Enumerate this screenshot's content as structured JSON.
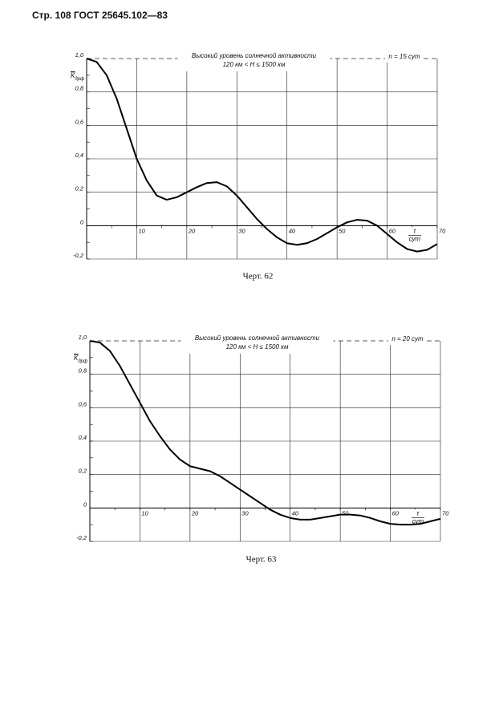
{
  "header": "Стр. 108 ГОСТ 25645.102—83",
  "chart_data": [
    {
      "type": "line",
      "title": "Высокий уровень солнечной активности",
      "subtitle": "120 км < H ≤ 1500 км",
      "annotation": "n = 15 сут",
      "y_label": {
        "symbol": "K",
        "subscript": "дрф"
      },
      "x_label": {
        "numerator": "τ",
        "denominator": "сут"
      },
      "caption": "Черт. 62",
      "color": "#000000",
      "grid": true,
      "x": [
        0,
        2,
        4,
        6,
        8,
        10,
        12,
        14,
        16,
        18,
        20,
        22,
        24,
        26,
        28,
        30,
        32,
        34,
        36,
        38,
        40,
        42,
        44,
        46,
        48,
        50,
        52,
        54,
        56,
        58,
        60,
        62,
        64,
        66,
        68,
        70
      ],
      "values": [
        1.0,
        0.98,
        0.9,
        0.76,
        0.58,
        0.4,
        0.27,
        0.18,
        0.155,
        0.17,
        0.2,
        0.23,
        0.255,
        0.26,
        0.235,
        0.18,
        0.11,
        0.04,
        -0.02,
        -0.07,
        -0.105,
        -0.115,
        -0.105,
        -0.08,
        -0.045,
        -0.01,
        0.02,
        0.035,
        0.03,
        0.0,
        -0.05,
        -0.1,
        -0.14,
        -0.155,
        -0.145,
        -0.11
      ],
      "xlim": [
        0,
        70
      ],
      "ylim": [
        -0.2,
        1.0
      ],
      "xticks": [
        10,
        20,
        30,
        40,
        50,
        60,
        70
      ],
      "yticks": [
        {
          "value": -0.2,
          "label": "-0,2"
        },
        0,
        {
          "value": 0.2,
          "label": "0,2"
        },
        {
          "value": 0.4,
          "label": "0,4"
        },
        {
          "value": 0.6,
          "label": "0,6"
        },
        {
          "value": 0.8,
          "label": "0,8"
        },
        {
          "value": 1.0,
          "label": "1,0"
        }
      ]
    },
    {
      "type": "line",
      "title": "Высокий уровень солнечной активности",
      "subtitle": "120 км < H ≤ 1500 км",
      "annotation": "n = 20 сут",
      "y_label": {
        "symbol": "K",
        "subscript": "дрф"
      },
      "x_label": {
        "numerator": "τ",
        "denominator": "сут"
      },
      "caption": "Черт. 63",
      "color": "#000000",
      "grid": true,
      "x": [
        0,
        2,
        4,
        6,
        8,
        10,
        12,
        14,
        16,
        18,
        20,
        22,
        24,
        26,
        28,
        30,
        32,
        34,
        36,
        38,
        40,
        42,
        44,
        46,
        48,
        50,
        52,
        54,
        56,
        58,
        60,
        62,
        64,
        66,
        68,
        70
      ],
      "values": [
        1.0,
        0.99,
        0.94,
        0.85,
        0.74,
        0.63,
        0.52,
        0.43,
        0.35,
        0.29,
        0.25,
        0.235,
        0.22,
        0.19,
        0.15,
        0.11,
        0.07,
        0.03,
        -0.01,
        -0.04,
        -0.06,
        -0.07,
        -0.07,
        -0.06,
        -0.05,
        -0.04,
        -0.04,
        -0.045,
        -0.06,
        -0.08,
        -0.095,
        -0.1,
        -0.1,
        -0.095,
        -0.08,
        -0.065
      ],
      "xlim": [
        0,
        70
      ],
      "ylim": [
        -0.2,
        1.0
      ],
      "xticks": [
        10,
        20,
        30,
        40,
        50,
        60,
        70
      ],
      "yticks": [
        {
          "value": -0.2,
          "label": "-0,2"
        },
        0,
        {
          "value": 0.2,
          "label": "0,2"
        },
        {
          "value": 0.4,
          "label": "0,4"
        },
        {
          "value": 0.6,
          "label": "0,6"
        },
        {
          "value": 0.8,
          "label": "0,8"
        },
        {
          "value": 1.0,
          "label": "1,0"
        }
      ]
    }
  ]
}
